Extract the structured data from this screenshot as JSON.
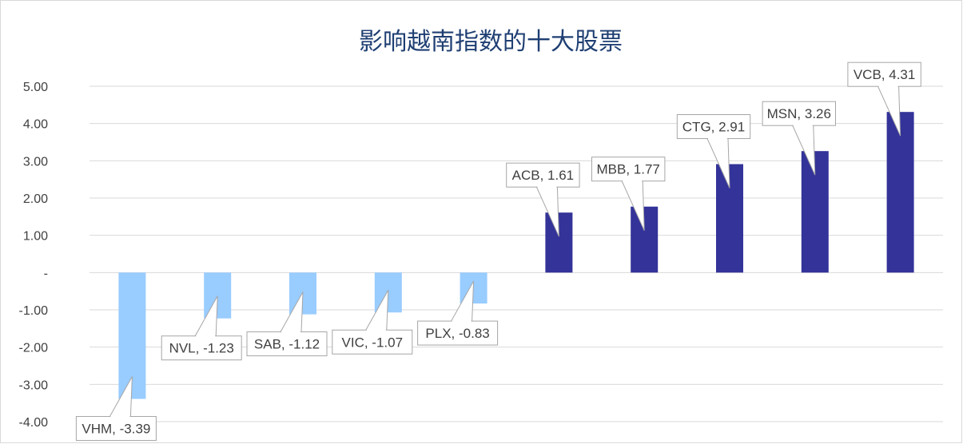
{
  "chart_data": {
    "type": "bar",
    "title": "影响越南指数的十大股票",
    "xlabel": "",
    "ylabel": "",
    "ylim": [
      -4,
      5
    ],
    "y_ticks": [
      5,
      4,
      3,
      2,
      1,
      0,
      -1,
      -2,
      -3,
      -4
    ],
    "y_tick_labels": [
      "5.00",
      "4.00",
      "3.00",
      "2.00",
      "1.00",
      "-",
      "-1.00",
      "-2.00",
      "-3.00",
      "-4.00"
    ],
    "grid": true,
    "legend": "none",
    "categories": [
      "VHM",
      "NVL",
      "SAB",
      "VIC",
      "PLX",
      "ACB",
      "MBB",
      "CTG",
      "MSN",
      "VCB"
    ],
    "values": [
      -3.39,
      -1.23,
      -1.12,
      -1.07,
      -0.83,
      1.61,
      1.77,
      2.91,
      3.26,
      4.31
    ],
    "data_labels": [
      "VHM, -3.39",
      "NVL, -1.23",
      "SAB, -1.12",
      "VIC, -1.07",
      "PLX, -0.83",
      "ACB, 1.61",
      "MBB, 1.77",
      "CTG, 2.91",
      "MSN, 3.26",
      "VCB, 4.31"
    ],
    "colors": {
      "negative": "#99ccff",
      "positive": "#333399",
      "title": "#1f3f73",
      "grid": "#d9d9d9",
      "border": "#d9d9d9",
      "callout_border": "#a6a6a6"
    }
  }
}
